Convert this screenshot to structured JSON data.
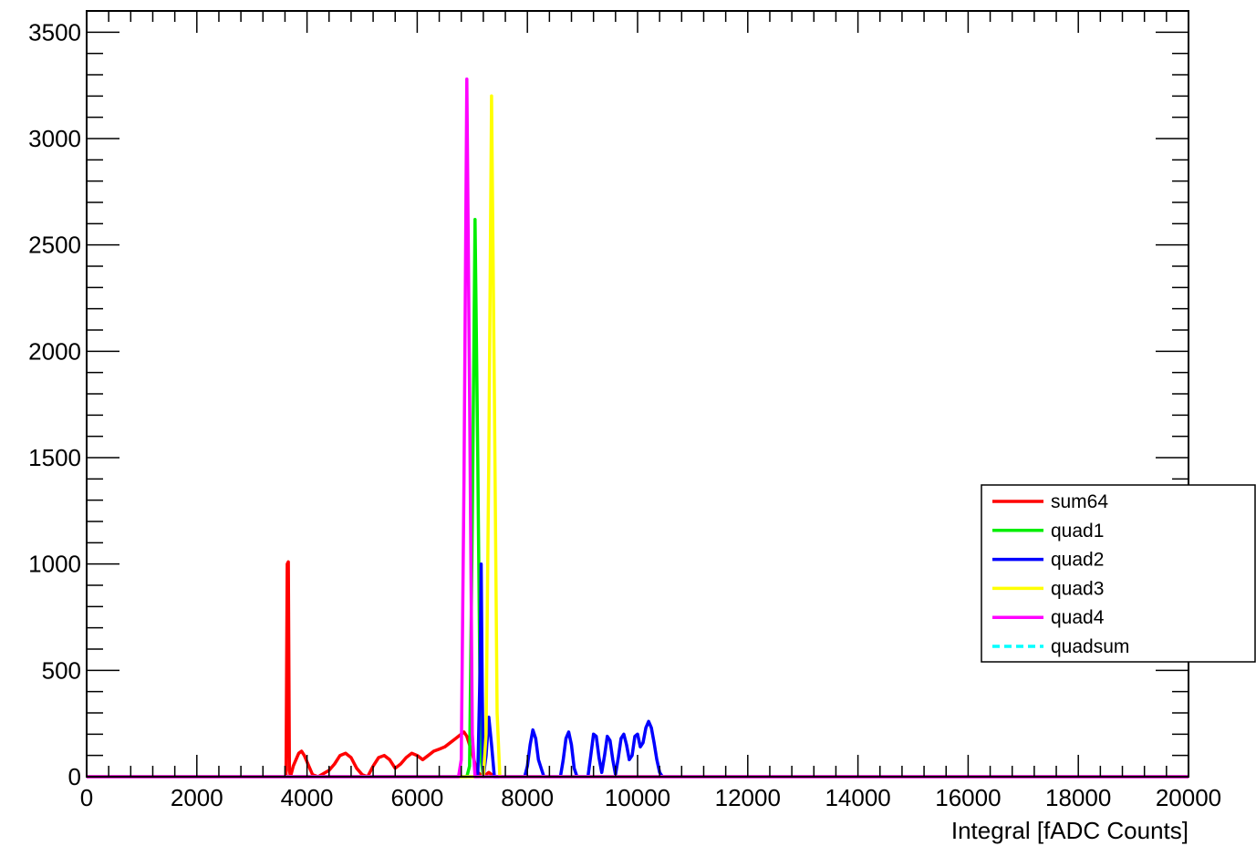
{
  "chart_data": {
    "type": "line",
    "title": "",
    "xlabel": "Integral [fADC Counts]",
    "ylabel": "",
    "xlim": [
      0,
      20000
    ],
    "ylim": [
      0,
      3600
    ],
    "x_ticks": [
      0,
      2000,
      4000,
      6000,
      8000,
      10000,
      12000,
      14000,
      16000,
      18000,
      20000
    ],
    "y_ticks": [
      0,
      500,
      1000,
      1500,
      2000,
      2500,
      3000,
      3500
    ],
    "legend_position": "right",
    "grid": false,
    "series": [
      {
        "name": "sum64",
        "color": "#ff0000",
        "dashed": false,
        "points": [
          [
            0,
            0
          ],
          [
            3600,
            0
          ],
          [
            3620,
            5
          ],
          [
            3640,
            1000
          ],
          [
            3660,
            1010
          ],
          [
            3680,
            30
          ],
          [
            3700,
            0
          ],
          [
            3750,
            50
          ],
          [
            3800,
            80
          ],
          [
            3850,
            110
          ],
          [
            3900,
            120
          ],
          [
            3950,
            100
          ],
          [
            4000,
            70
          ],
          [
            4050,
            40
          ],
          [
            4100,
            10
          ],
          [
            4200,
            0
          ],
          [
            4400,
            30
          ],
          [
            4500,
            60
          ],
          [
            4600,
            100
          ],
          [
            4700,
            110
          ],
          [
            4800,
            90
          ],
          [
            4900,
            40
          ],
          [
            5000,
            10
          ],
          [
            5100,
            0
          ],
          [
            5200,
            50
          ],
          [
            5300,
            90
          ],
          [
            5400,
            100
          ],
          [
            5500,
            80
          ],
          [
            5600,
            40
          ],
          [
            5700,
            60
          ],
          [
            5800,
            90
          ],
          [
            5900,
            110
          ],
          [
            6000,
            100
          ],
          [
            6100,
            80
          ],
          [
            6200,
            100
          ],
          [
            6300,
            120
          ],
          [
            6400,
            130
          ],
          [
            6500,
            140
          ],
          [
            6600,
            160
          ],
          [
            6700,
            180
          ],
          [
            6800,
            200
          ],
          [
            6850,
            210
          ],
          [
            6900,
            190
          ],
          [
            6950,
            150
          ],
          [
            7000,
            110
          ],
          [
            7050,
            60
          ],
          [
            7100,
            20
          ],
          [
            7200,
            0
          ],
          [
            7300,
            20
          ],
          [
            7400,
            0
          ],
          [
            20000,
            0
          ]
        ]
      },
      {
        "name": "quad1",
        "color": "#00ee00",
        "dashed": false,
        "points": [
          [
            0,
            0
          ],
          [
            6900,
            0
          ],
          [
            6950,
            50
          ],
          [
            7000,
            1200
          ],
          [
            7050,
            2620
          ],
          [
            7100,
            1500
          ],
          [
            7150,
            100
          ],
          [
            7200,
            0
          ],
          [
            20000,
            0
          ]
        ]
      },
      {
        "name": "quad2",
        "color": "#0000ff",
        "dashed": false,
        "points": [
          [
            0,
            0
          ],
          [
            7100,
            0
          ],
          [
            7140,
            500
          ],
          [
            7160,
            1000
          ],
          [
            7180,
            400
          ],
          [
            7200,
            0
          ],
          [
            7250,
            100
          ],
          [
            7300,
            280
          ],
          [
            7350,
            150
          ],
          [
            7400,
            0
          ],
          [
            7950,
            0
          ],
          [
            8000,
            50
          ],
          [
            8050,
            150
          ],
          [
            8100,
            220
          ],
          [
            8150,
            180
          ],
          [
            8200,
            80
          ],
          [
            8300,
            0
          ],
          [
            8600,
            0
          ],
          [
            8650,
            80
          ],
          [
            8700,
            180
          ],
          [
            8750,
            210
          ],
          [
            8800,
            150
          ],
          [
            8850,
            40
          ],
          [
            8900,
            0
          ],
          [
            9100,
            0
          ],
          [
            9150,
            100
          ],
          [
            9200,
            200
          ],
          [
            9250,
            190
          ],
          [
            9300,
            90
          ],
          [
            9350,
            20
          ],
          [
            9400,
            100
          ],
          [
            9450,
            190
          ],
          [
            9500,
            170
          ],
          [
            9550,
            80
          ],
          [
            9600,
            10
          ],
          [
            9650,
            90
          ],
          [
            9700,
            180
          ],
          [
            9750,
            200
          ],
          [
            9800,
            150
          ],
          [
            9850,
            80
          ],
          [
            9900,
            100
          ],
          [
            9950,
            190
          ],
          [
            10000,
            200
          ],
          [
            10050,
            140
          ],
          [
            10100,
            160
          ],
          [
            10150,
            230
          ],
          [
            10200,
            260
          ],
          [
            10250,
            230
          ],
          [
            10300,
            160
          ],
          [
            10350,
            80
          ],
          [
            10400,
            20
          ],
          [
            10450,
            0
          ],
          [
            20000,
            0
          ]
        ]
      },
      {
        "name": "quad3",
        "color": "#ffff00",
        "dashed": false,
        "points": [
          [
            0,
            0
          ],
          [
            7200,
            0
          ],
          [
            7250,
            200
          ],
          [
            7300,
            1500
          ],
          [
            7350,
            3200
          ],
          [
            7400,
            1800
          ],
          [
            7450,
            300
          ],
          [
            7500,
            0
          ],
          [
            20000,
            0
          ]
        ]
      },
      {
        "name": "quad4",
        "color": "#ff00ff",
        "dashed": false,
        "points": [
          [
            0,
            0
          ],
          [
            6750,
            0
          ],
          [
            6800,
            80
          ],
          [
            6850,
            1400
          ],
          [
            6900,
            3280
          ],
          [
            6950,
            1800
          ],
          [
            7000,
            200
          ],
          [
            7050,
            0
          ],
          [
            20000,
            0
          ]
        ]
      },
      {
        "name": "quadsum",
        "color": "#00ffff",
        "dashed": true,
        "points": []
      }
    ]
  }
}
